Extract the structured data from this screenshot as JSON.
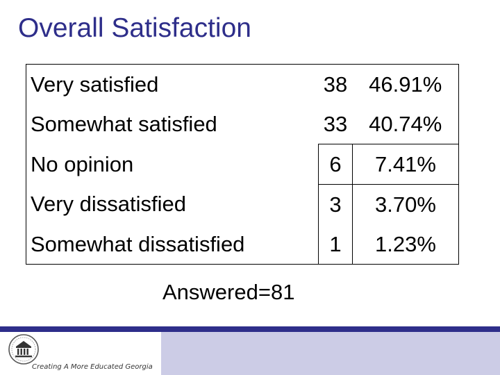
{
  "title": "Overall Satisfaction",
  "rows": [
    {
      "label": "Very satisfied",
      "count": "38",
      "percent": "46.91%"
    },
    {
      "label": "Somewhat satisfied",
      "count": "33",
      "percent": "40.74%"
    },
    {
      "label": "No opinion",
      "count": "6",
      "percent": "7.41%"
    },
    {
      "label": "Very dissatisfied",
      "count": "3",
      "percent": "3.70%"
    },
    {
      "label": "Somewhat dissatisfied",
      "count": "1",
      "percent": "1.23%"
    }
  ],
  "answered": "Answered=81",
  "footer": {
    "tagline": "Creating A More Educated Georgia",
    "logo_icon": "university-seal-icon",
    "accent_color": "#2e2e8a",
    "band_color": "#cccce6"
  }
}
